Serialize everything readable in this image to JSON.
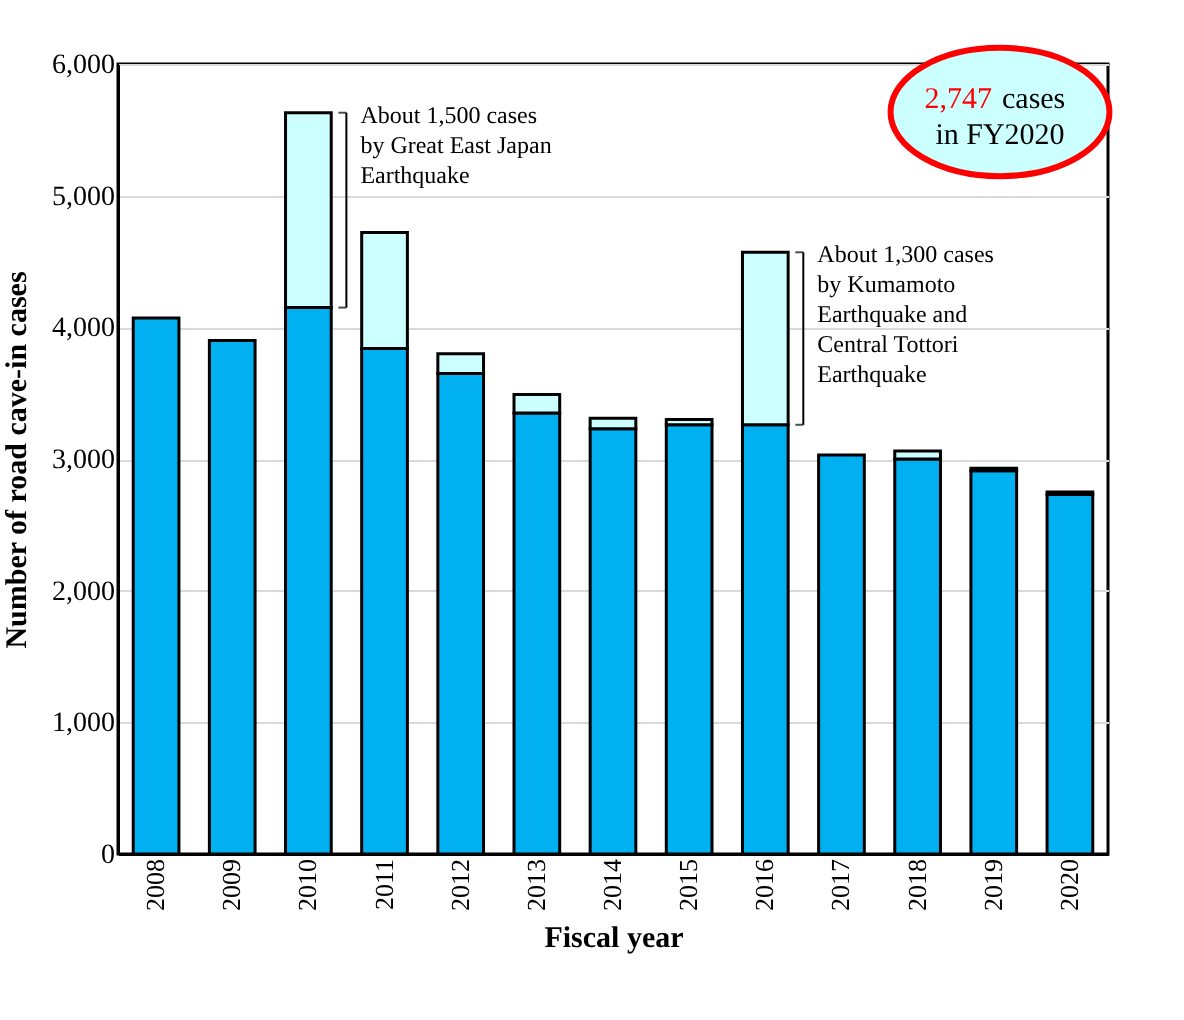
{
  "chart_data": {
    "type": "bar",
    "stacked": true,
    "xlabel": "Fiscal year",
    "ylabel": "Number of road cave-in cases",
    "categories": [
      "2008",
      "2009",
      "2010",
      "2011",
      "2012",
      "2013",
      "2014",
      "2015",
      "2016",
      "2017",
      "2018",
      "2019",
      "2020"
    ],
    "series": [
      {
        "color": "#00b0f0",
        "values": [
          4070,
          3900,
          4150,
          3840,
          3650,
          3350,
          3230,
          3260,
          3260,
          3030,
          3000,
          2910,
          2730
        ]
      },
      {
        "color": "#ccffff",
        "values": [
          null,
          null,
          1480,
          880,
          150,
          140,
          80,
          40,
          1310,
          null,
          60,
          20,
          20
        ]
      }
    ],
    "ylim": [
      0,
      6000
    ],
    "yticks": [
      {
        "value": 0,
        "label": "0"
      },
      {
        "value": 1000,
        "label": "1,000"
      },
      {
        "value": 2000,
        "label": "2,000"
      },
      {
        "value": 3000,
        "label": "3,000"
      },
      {
        "value": 4000,
        "label": "4,000"
      },
      {
        "value": 5000,
        "label": "5,000"
      },
      {
        "value": 6000,
        "label": "6,000"
      }
    ],
    "grid": "y",
    "annotations": [
      {
        "text": "About 1,500 cases\nby Great East Japan\nEarthquake",
        "x": "2010",
        "y": 5630
      },
      {
        "text": "About 1,300 cases\nby Kumamoto\nEarthquake and\nCentral Tottori\nEarthquake",
        "x": "2016",
        "y": 4570
      },
      "2,747",
      "cases",
      "in FY2020"
    ]
  }
}
